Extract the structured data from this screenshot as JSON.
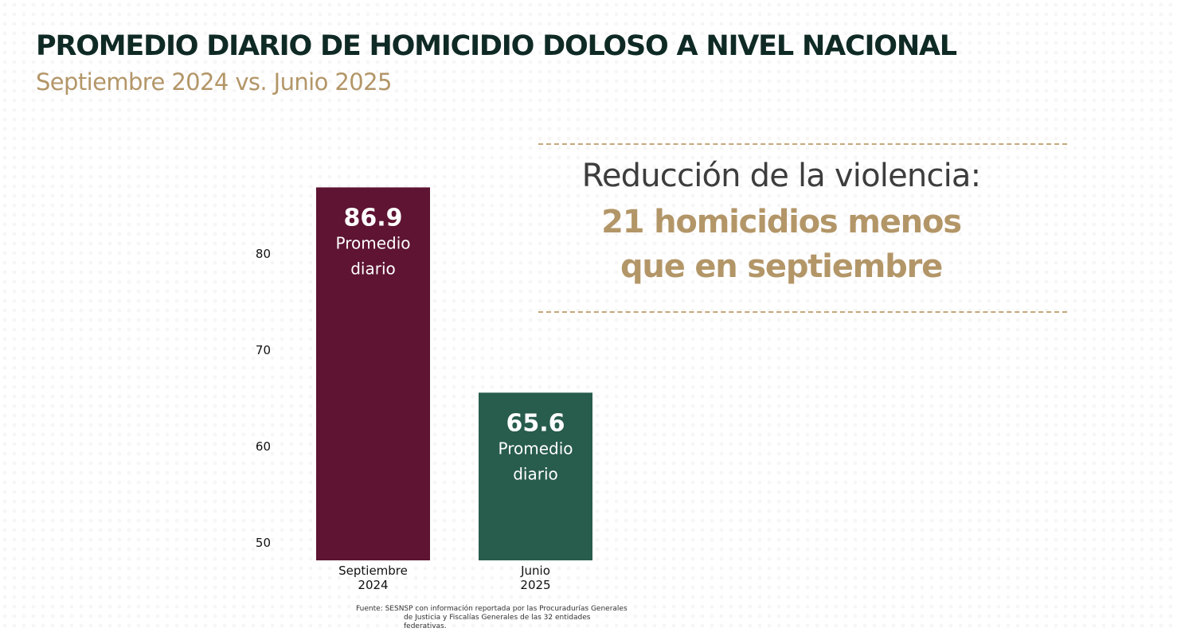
{
  "header": {
    "title": "PROMEDIO DIARIO DE HOMICIDIO DOLOSO A NIVEL NACIONAL",
    "subtitle": "Septiembre 2024 vs. Junio 2025"
  },
  "callout": {
    "lead": "Reducción de la violencia:",
    "line1": "21 homicidios menos",
    "line2": "que en septiembre"
  },
  "chart_data": {
    "type": "bar",
    "categories": [
      "Septiembre 2024",
      "Junio 2025"
    ],
    "category_lines": [
      [
        "Septiembre",
        "2024"
      ],
      [
        "Junio",
        "2025"
      ]
    ],
    "values": [
      86.9,
      65.6
    ],
    "value_labels": [
      "86.9",
      "65.6"
    ],
    "bar_caption": [
      "Promedio",
      "diario"
    ],
    "bar_colors": [
      "#5e1432",
      "#285c4d"
    ],
    "ylim": [
      48.2,
      87.1
    ],
    "yticks": [
      50,
      60,
      70,
      80
    ],
    "grid": false,
    "title": "",
    "xlabel": "",
    "ylabel": ""
  },
  "footer": {
    "source_line1": "Fuente: SESNSP con información reportada por las Procuradurías Generales",
    "source_line2": "de Justicia y Fiscalías Generales de las 32 entidades federativas."
  }
}
